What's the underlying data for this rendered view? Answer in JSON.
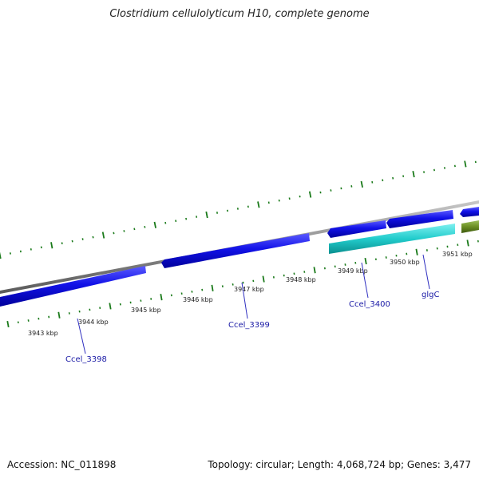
{
  "title": "Clostridium cellulolyticum H10, complete genome",
  "footer": {
    "accession": "Accession: NC_011898",
    "summary": "Topology: circular; Length: 4,068,724 bp; Genes: 3,477"
  },
  "colors": {
    "background": "#ffffff",
    "backbone": "#8c8c8c",
    "cds": "#1010e6",
    "rna": "#22cccc",
    "other": "#6b8e23",
    "ticks": "#1a7a1a",
    "label_lines": "#3030c0"
  },
  "scale_labels": [
    "3943 kbp",
    "3944 kbp",
    "3945 kbp",
    "3946 kbp",
    "3947 kbp",
    "3948 kbp",
    "3949 kbp",
    "3950 kbp",
    "3951 kbp"
  ],
  "gene_labels": [
    "Ccel_3398",
    "Ccel_3399",
    "Ccel_3400",
    "glgC"
  ]
}
